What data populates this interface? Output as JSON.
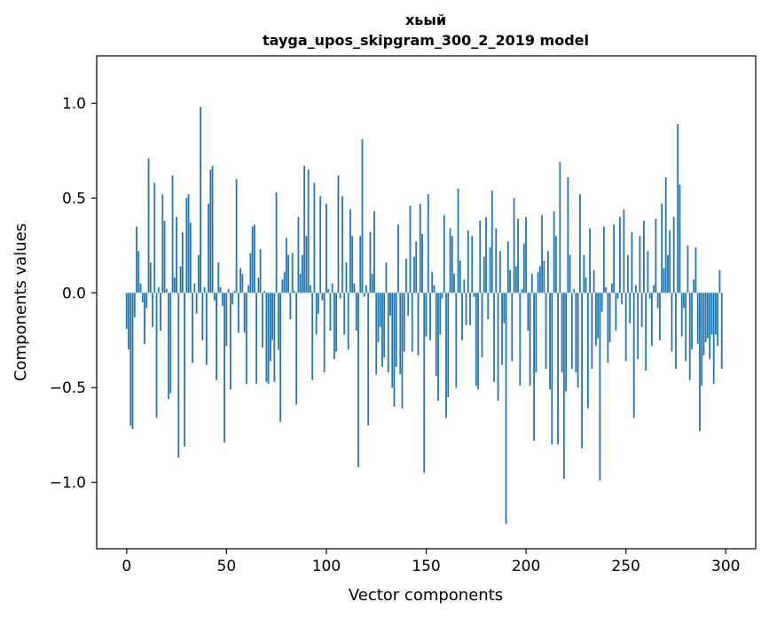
{
  "chart_data": {
    "type": "bar",
    "title": "хьый",
    "subtitle": "tayga_upos_skipgram_300_2_2019 model",
    "xlabel": "Vector components",
    "ylabel": "Components values",
    "xlim": [
      -15,
      315
    ],
    "ylim": [
      -1.35,
      1.25
    ],
    "grid": false,
    "bar_color": "#1f77b4",
    "x_ticks": [
      {
        "value": 0,
        "label": "0"
      },
      {
        "value": 50,
        "label": "50"
      },
      {
        "value": 100,
        "label": "100"
      },
      {
        "value": 150,
        "label": "150"
      },
      {
        "value": 200,
        "label": "200"
      },
      {
        "value": 250,
        "label": "250"
      },
      {
        "value": 300,
        "label": "300"
      }
    ],
    "y_ticks": [
      {
        "value": -1.0,
        "label": "−1.0"
      },
      {
        "value": -0.5,
        "label": "−0.5"
      },
      {
        "value": 0.0,
        "label": "0.0"
      },
      {
        "value": 0.5,
        "label": "0.5"
      },
      {
        "value": 1.0,
        "label": "1.0"
      }
    ],
    "values": [
      -0.19,
      -0.3,
      -0.7,
      -0.72,
      -0.13,
      0.35,
      0.22,
      0.05,
      -0.05,
      -0.27,
      -0.08,
      0.71,
      0.16,
      -0.18,
      0.58,
      -0.66,
      0.03,
      -0.2,
      0.52,
      0.38,
      0.02,
      -0.56,
      -0.53,
      0.62,
      0.08,
      0.4,
      -0.87,
      0.14,
      0.32,
      -0.81,
      0.5,
      0.52,
      0.37,
      -0.37,
      0.05,
      -0.11,
      0.2,
      0.98,
      -0.25,
      0.03,
      -0.38,
      0.47,
      0.65,
      0.67,
      -0.04,
      -0.46,
      0.16,
      0.03,
      -0.07,
      -0.79,
      -0.28,
      0.02,
      -0.51,
      -0.06,
      0.01,
      0.6,
      -0.21,
      0.13,
      0.1,
      -0.21,
      -0.48,
      0.04,
      0.21,
      0.35,
      0.36,
      -0.48,
      0.08,
      0.23,
      -0.29,
      0.01,
      -0.47,
      -0.48,
      -0.36,
      -0.25,
      -0.47,
      0.53,
      -0.3,
      -0.68,
      0.07,
      0.11,
      0.29,
      0.2,
      -0.14,
      0.21,
      0.01,
      -0.59,
      0.4,
      0.1,
      0.2,
      0.67,
      0.3,
      0.65,
      0.04,
      -0.46,
      0.58,
      -0.22,
      -0.11,
      0.51,
      -0.04,
      -0.42,
      0.47,
      0.02,
      -0.2,
      0.05,
      -0.35,
      -0.31,
      0.62,
      -0.03,
      0.51,
      -0.22,
      0.16,
      -0.3,
      0.44,
      0.3,
      0.05,
      -0.2,
      -0.92,
      0.3,
      0.81,
      -0.02,
      0.04,
      -0.7,
      0.32,
      0.1,
      0.43,
      -0.43,
      -0.26,
      -0.18,
      -0.39,
      -0.34,
      0.16,
      -0.42,
      -0.12,
      -0.5,
      -0.6,
      -0.39,
      0.36,
      -0.43,
      -0.61,
      -0.31,
      0.18,
      -0.12,
      0.46,
      -0.31,
      0.19,
      0.27,
      -0.33,
      0.47,
      0.31,
      -0.95,
      -0.23,
      0.52,
      -0.25,
      0.11,
      0.04,
      -0.44,
      -0.57,
      -0.22,
      -0.03,
      0.41,
      -0.66,
      -0.55,
      0.34,
      0.3,
      0.1,
      -0.5,
      0.55,
      0.17,
      -0.25,
      0.07,
      -0.17,
      0.33,
      -0.17,
      0.3,
      -0.02,
      -0.49,
      -0.51,
      0.38,
      -0.34,
      0.19,
      0.4,
      -0.14,
      0.24,
      0.54,
      -0.47,
      0.34,
      -0.57,
      0.22,
      -0.38,
      -0.16,
      -1.22,
      0.27,
      0.12,
      -0.36,
      0.5,
      0.14,
      0.39,
      -0.49,
      0.02,
      0.26,
      0.4,
      -0.2,
      -0.49,
      0.1,
      -0.78,
      -0.42,
      0.11,
      0.14,
      0.41,
      0.17,
      -0.4,
      0.22,
      -0.51,
      -0.8,
      0.43,
      0.3,
      -0.8,
      0.69,
      -0.42,
      -0.98,
      -0.52,
      0.61,
      0.2,
      -0.4,
      0.02,
      -0.42,
      -0.5,
      0.52,
      -0.82,
      0.2,
      0.08,
      -0.61,
      0.34,
      -0.4,
      0.12,
      -0.28,
      -0.24,
      -0.99,
      -0.1,
      0.35,
      0.03,
      -0.37,
      -0.26,
      0.05,
      0.36,
      -0.2,
      -0.03,
      0.4,
      -0.06,
      0.44,
      -0.36,
      0.2,
      -0.16,
      0.32,
      -0.66,
      0.04,
      -0.35,
      0.3,
      -0.18,
      0.38,
      -0.41,
      0.22,
      -0.03,
      -0.28,
      0.04,
      0.39,
      -0.08,
      -0.25,
      0.47,
      0.13,
      0.61,
      0.2,
      0.33,
      -0.31,
      0.4,
      -0.4,
      0.89,
      0.57,
      -0.23,
      -0.08,
      -0.36,
      0.25,
      -0.46,
      -0.3,
      0.07,
      0.24,
      -0.27,
      -0.73,
      -0.49,
      -0.33,
      -0.26,
      -0.24,
      -0.35,
      -0.22,
      -0.48,
      -0.22,
      -0.28,
      0.12,
      -0.4
    ]
  }
}
